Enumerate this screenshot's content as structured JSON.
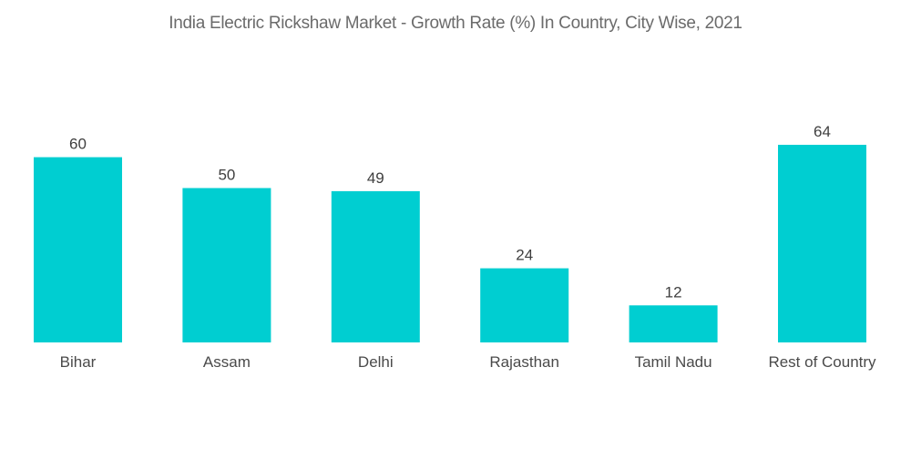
{
  "chart_data": {
    "type": "bar",
    "title": "India Electric Rickshaw Market - Growth Rate (%) In Country, City Wise, 2021",
    "categories": [
      "Bihar",
      "Assam",
      "Delhi",
      "Rajasthan",
      "Tamil Nadu",
      "Rest of Country"
    ],
    "values": [
      60,
      50,
      49,
      24,
      12,
      64
    ],
    "xlabel": "",
    "ylabel": "",
    "ylim": [
      0,
      64
    ],
    "grid": false,
    "legend": "none",
    "bar_color": "#00ced1",
    "data_labels": true
  }
}
